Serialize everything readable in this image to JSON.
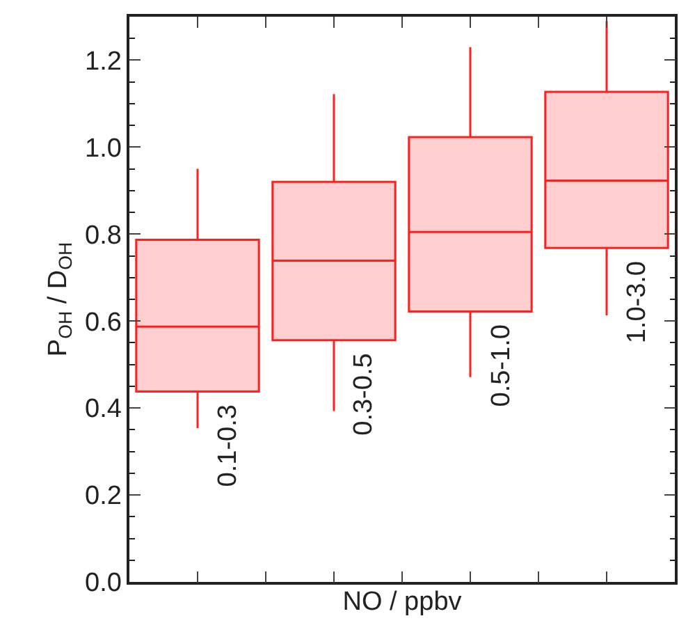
{
  "chart_data": {
    "type": "box",
    "xlabel": "NO / ppbv",
    "ylabel": "P$_{OH}$ / D$_{OH}$",
    "categories": [
      "0.1-0.3",
      "0.3-0.5",
      "0.5-1.0",
      "1.0-3.0"
    ],
    "series": [
      {
        "color": "#ff2020",
        "boxes": [
          {
            "low": 0.354,
            "q1": 0.438,
            "median": 0.587,
            "q3": 0.787,
            "high": 0.95
          },
          {
            "low": 0.393,
            "q1": 0.556,
            "median": 0.739,
            "q3": 0.92,
            "high": 1.122
          },
          {
            "low": 0.471,
            "q1": 0.622,
            "median": 0.805,
            "q3": 1.023,
            "high": 1.23
          },
          {
            "low": 0.613,
            "q1": 0.768,
            "median": 0.923,
            "q3": 1.127,
            "high": 1.29
          }
        ]
      }
    ],
    "ylim": [
      0,
      1.3
    ],
    "yticks": [
      {
        "value": 0,
        "label": "0.0"
      },
      0.2,
      0.4,
      0.6,
      0.8,
      {
        "value": 1,
        "label": "1.0"
      },
      1.2
    ],
    "tick_labels": "y",
    "grid": false
  }
}
